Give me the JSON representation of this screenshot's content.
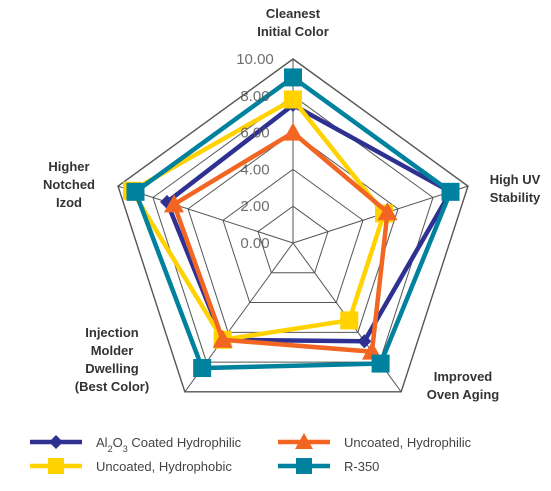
{
  "chart_data": {
    "type": "radar",
    "title": "",
    "axes": [
      {
        "label_lines": [
          "Cleanest",
          "Initial Color"
        ]
      },
      {
        "label_lines": [
          "High UV",
          "Stability"
        ]
      },
      {
        "label_lines": [
          "Improved",
          "Oven Aging"
        ]
      },
      {
        "label_lines": [
          "Injection",
          "Molder",
          "Dwelling",
          "(Best Color)"
        ]
      },
      {
        "label_lines": [
          "Higher",
          "Notched",
          "Izod"
        ]
      }
    ],
    "rlim": [
      0,
      10
    ],
    "ticks": [
      "0.00",
      "2.00",
      "4.00",
      "6.00",
      "8.00",
      "10.00"
    ],
    "tick_values": [
      0,
      2,
      4,
      6,
      8,
      10
    ],
    "grid": true,
    "legend_position": "bottom",
    "series": [
      {
        "name": "Al2O3 Coated Hydrophilic",
        "name_parts": {
          "pre": "Al",
          "sub1": "2",
          "mid": "O",
          "sub2": "3",
          "post": " Coated Hydrophilic"
        },
        "values": [
          7.5,
          9.0,
          6.6,
          6.5,
          7.2
        ],
        "color": "#2e3191",
        "marker": "diamond"
      },
      {
        "name": "Uncoated, Hydrophobic",
        "values": [
          7.8,
          5.2,
          5.2,
          6.5,
          9.2
        ],
        "color": "#ffd200",
        "marker": "square"
      },
      {
        "name": "Uncoated, Hydrophilic",
        "values": [
          6.0,
          5.4,
          7.3,
          6.5,
          6.8
        ],
        "color": "#f26522",
        "marker": "triangle"
      },
      {
        "name": "R-350",
        "values": [
          9.0,
          9.0,
          8.1,
          8.4,
          9.0
        ],
        "color": "#00819d",
        "marker": "square"
      }
    ]
  },
  "colors": {
    "grid": "#555555",
    "text": "#333333"
  }
}
